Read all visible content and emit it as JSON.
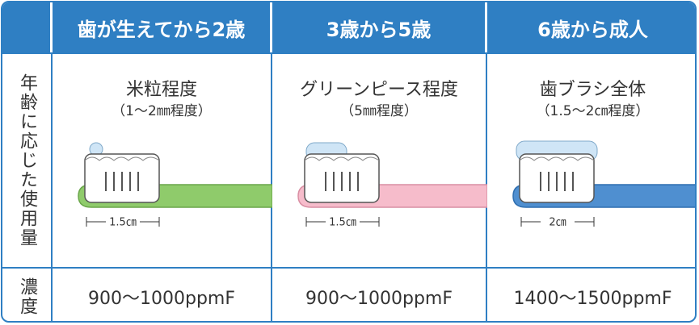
{
  "table": {
    "header": [
      "歯が生えてから2歳",
      "3歳から5歳",
      "6歳から成人"
    ],
    "rows": [
      {
        "label": "年齢に応じた使用量",
        "cells": [
          {
            "amount": "米粒程度",
            "detail": "（1～2㎜程度）",
            "measure": "1.5㎝"
          },
          {
            "amount": "グリーンピース程度",
            "detail": "（5㎜程度）",
            "measure": "1.5㎝"
          },
          {
            "amount": "歯ブラシ全体",
            "detail": "（1.5～2㎝程度）",
            "measure": "2㎝"
          }
        ]
      },
      {
        "label": "濃度",
        "cells": [
          "900～1000ppmF",
          "900～1000ppmF",
          "1400～1500ppmF"
        ]
      }
    ]
  }
}
